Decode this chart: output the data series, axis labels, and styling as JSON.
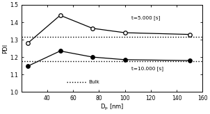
{
  "t5000_x": [
    25,
    50,
    75,
    100,
    150
  ],
  "t5000_y": [
    1.28,
    1.44,
    1.365,
    1.34,
    1.33
  ],
  "t10000_x": [
    25,
    50,
    75,
    100,
    150
  ],
  "t10000_y": [
    1.148,
    1.235,
    1.2,
    1.185,
    1.18
  ],
  "bulk_t5000": 1.315,
  "bulk_t10000": 1.175,
  "xlim": [
    20,
    160
  ],
  "ylim": [
    1.0,
    1.5
  ],
  "xticks": [
    40,
    60,
    80,
    100,
    120,
    140,
    160
  ],
  "yticks": [
    1.0,
    1.1,
    1.2,
    1.3,
    1.4,
    1.5
  ],
  "xlabel": "D$_\\mathrm{p}$ [nm]",
  "ylabel": "PDI",
  "label_t5000": "t=5.000 [s]",
  "label_t10000": "t=10.000 [s]",
  "label_bulk": "Bulk",
  "background_color": "#ffffff"
}
